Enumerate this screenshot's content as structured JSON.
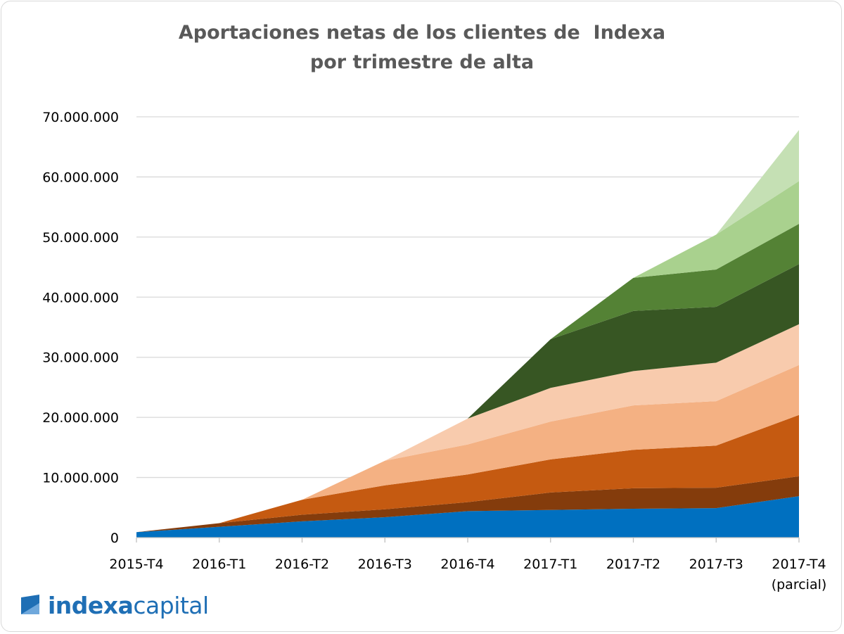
{
  "title_line1": "Aportaciones netas de los clientes de  Indexa",
  "title_line2": "por trimestre de alta",
  "logo": {
    "bold": "indexa",
    "light": "capital",
    "color": "#1f6fb5"
  },
  "chart_data": {
    "type": "area",
    "stacked": true,
    "title": "Aportaciones netas de los clientes de  Indexa por trimestre de alta",
    "categories": [
      "2015-T4",
      "2016-T1",
      "2016-T2",
      "2016-T3",
      "2016-T4",
      "2017-T1",
      "2017-T2",
      "2017-T3",
      "2017-T4"
    ],
    "category_sublabels": [
      "",
      "",
      "",
      "",
      "",
      "",
      "",
      "",
      "(parcial)"
    ],
    "y_tick_labels": [
      "0",
      "10.000.000",
      "20.000.000",
      "30.000.000",
      "40.000.000",
      "50.000.000",
      "60.000.000",
      "70.000.000"
    ],
    "ylim": [
      0,
      70000000
    ],
    "grid": true,
    "legend": "none",
    "series": [
      {
        "color": "#0070c0",
        "values": [
          900000,
          1800000,
          2700000,
          3400000,
          4400000,
          4600000,
          4800000,
          4900000,
          6900000
        ]
      },
      {
        "color": "#843c0c",
        "values": [
          null,
          600000,
          1100000,
          1300000,
          1500000,
          2900000,
          3400000,
          3400000,
          3300000
        ]
      },
      {
        "color": "#c55a11",
        "values": [
          null,
          null,
          2500000,
          4000000,
          4600000,
          5500000,
          6400000,
          7000000,
          10200000
        ]
      },
      {
        "color": "#f4b183",
        "values": [
          null,
          null,
          null,
          4100000,
          5000000,
          6300000,
          7400000,
          7400000,
          8300000
        ]
      },
      {
        "color": "#f8cbad",
        "values": [
          null,
          null,
          null,
          null,
          4300000,
          5600000,
          5700000,
          6400000,
          6800000
        ]
      },
      {
        "color": "#375623",
        "values": [
          null,
          null,
          null,
          null,
          null,
          8100000,
          10000000,
          9300000,
          10000000
        ]
      },
      {
        "color": "#548235",
        "values": [
          null,
          null,
          null,
          null,
          null,
          null,
          5500000,
          6200000,
          6700000
        ]
      },
      {
        "color": "#a9d18e",
        "values": [
          null,
          null,
          null,
          null,
          null,
          null,
          null,
          5800000,
          7100000
        ]
      },
      {
        "color": "#c5e0b4",
        "values": [
          null,
          null,
          null,
          null,
          null,
          null,
          null,
          null,
          8500000
        ]
      }
    ]
  }
}
